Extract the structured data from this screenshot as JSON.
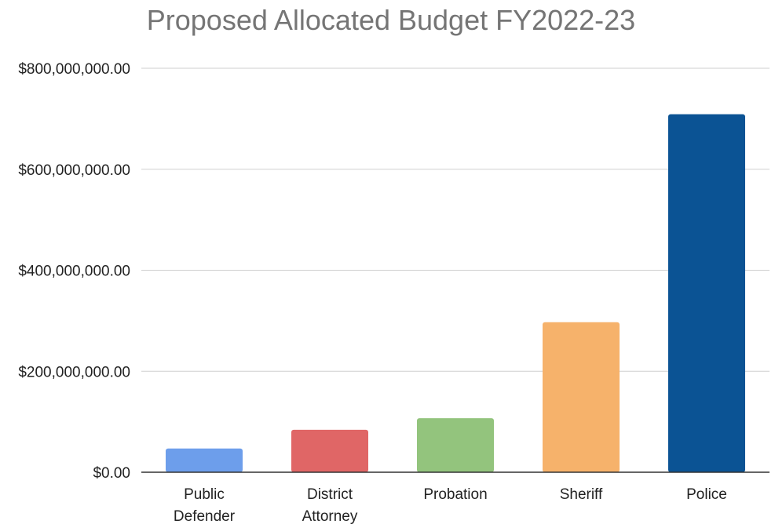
{
  "chart_data": {
    "type": "bar",
    "title": "Proposed Allocated Budget FY2022-23",
    "xlabel": "",
    "ylabel": "",
    "categories": [
      [
        "Public",
        "Defender"
      ],
      [
        "District",
        "Attorney"
      ],
      [
        "Probation"
      ],
      [
        "Sheriff"
      ],
      [
        "Police"
      ]
    ],
    "values": [
      47000000,
      84000000,
      107000000,
      297000000,
      709000000
    ],
    "colors": [
      "#6d9eeb",
      "#e06666",
      "#93c47d",
      "#f6b26b",
      "#0b5394"
    ],
    "ylim": [
      0,
      800000000
    ],
    "yticks": [
      0,
      200000000,
      400000000,
      600000000,
      800000000
    ],
    "ytick_labels": [
      "$0.00",
      "$200,000,000.00",
      "$400,000,000.00",
      "$600,000,000.00",
      "$800,000,000.00"
    ],
    "grid": true,
    "legend": "none"
  }
}
